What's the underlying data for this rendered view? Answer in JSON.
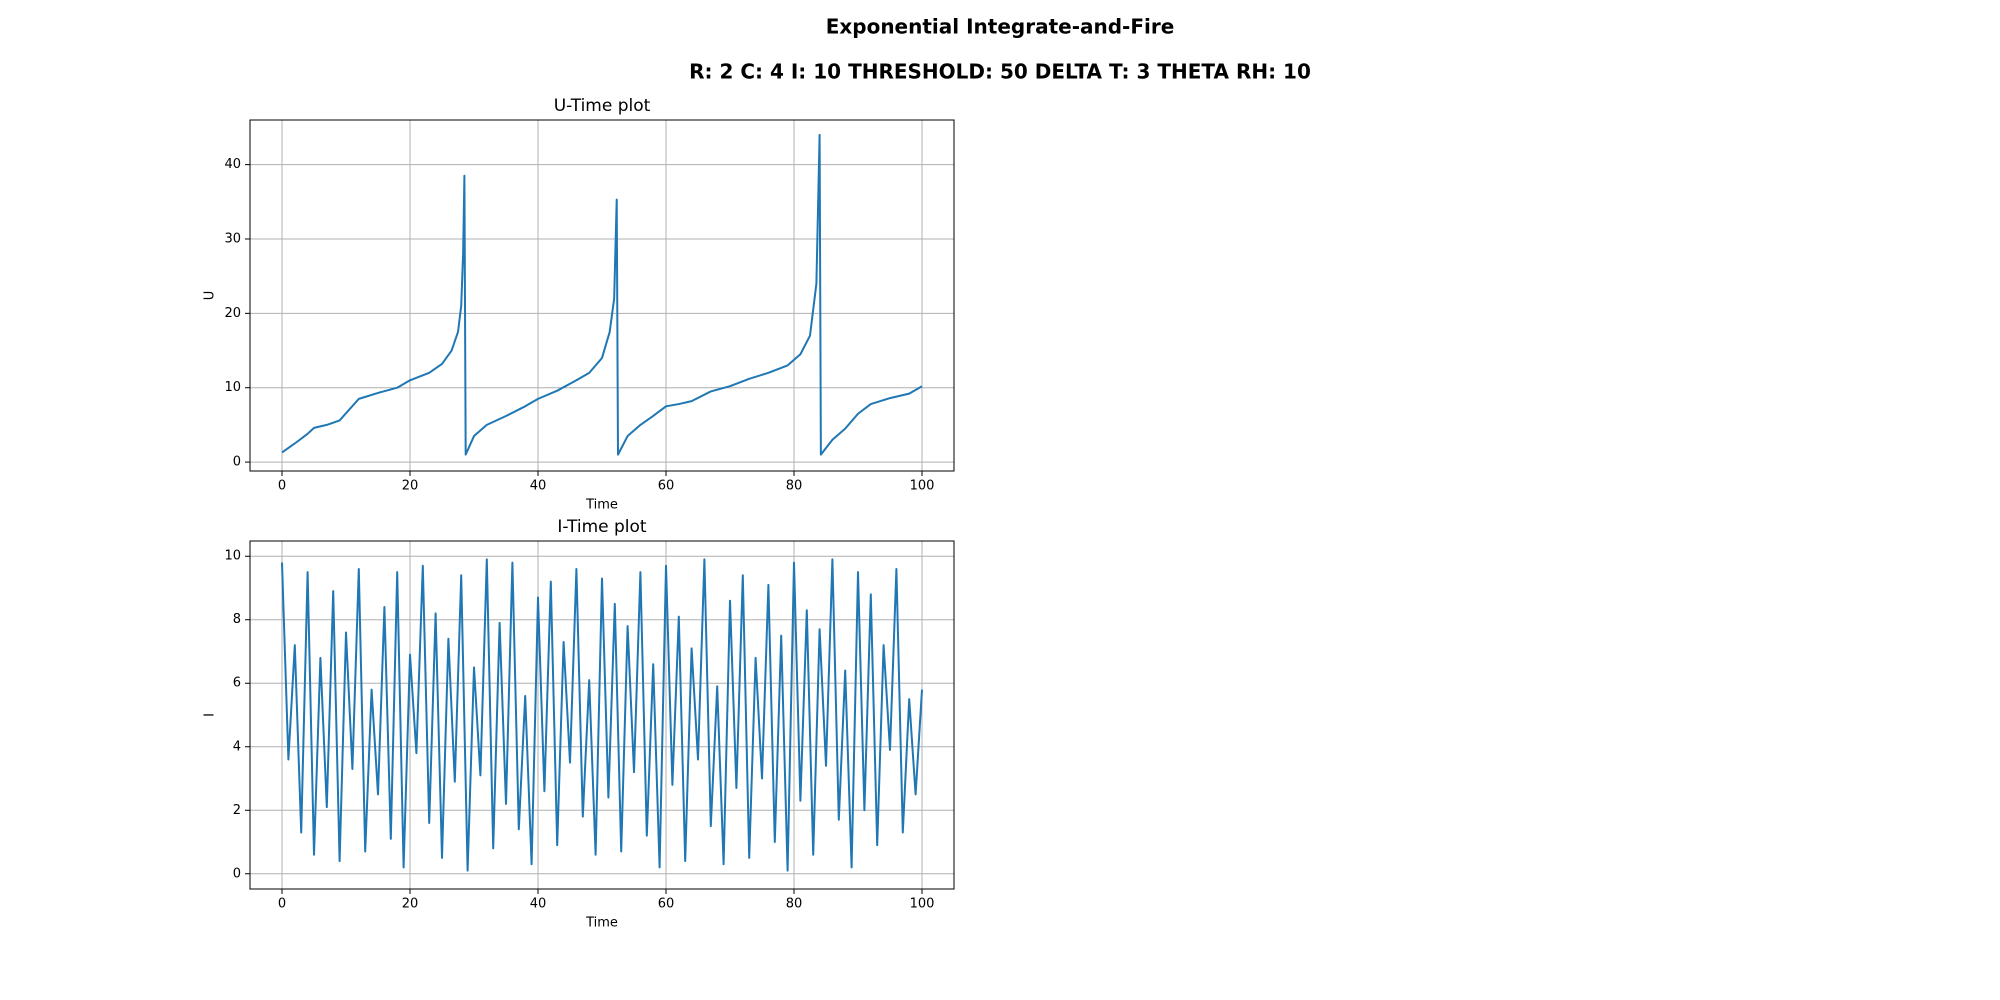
{
  "title": "Exponential Integrate-and-Fire",
  "subtitle": "R: 2    C: 4    I: 10    THRESHOLD: 50    DELTA T: 3    THETA RH: 10",
  "chart_data": [
    {
      "type": "line",
      "title": "U-Time plot",
      "x_label": "Time",
      "y_label": "U",
      "x": [
        0,
        2,
        4,
        5,
        7,
        9,
        12,
        15,
        18,
        20,
        23,
        25,
        26.5,
        27.5,
        28,
        28.3,
        28.5,
        28.7,
        30,
        32,
        35,
        38,
        40,
        43,
        46,
        48,
        50,
        51.2,
        51.9,
        52.3,
        52.5,
        54,
        56,
        58,
        60,
        62,
        64,
        67,
        70,
        73,
        76,
        79,
        81,
        82.5,
        83.5,
        84,
        84.2,
        86,
        88,
        90,
        92,
        95,
        98,
        100
      ],
      "series": [
        {
          "name": "U",
          "color": "#1f77b4",
          "values": [
            1.3,
            2.5,
            3.8,
            4.6,
            5,
            5.6,
            8.5,
            9.3,
            10,
            11,
            12,
            13.2,
            15,
            17.5,
            21,
            28,
            38.5,
            1,
            3.5,
            5,
            6.2,
            7.5,
            8.5,
            9.6,
            11,
            12,
            14,
            17.5,
            22,
            35.3,
            1,
            3.5,
            5,
            6.2,
            7.5,
            7.8,
            8.2,
            9.5,
            10.2,
            11.2,
            12,
            13,
            14.5,
            17,
            24,
            44,
            1,
            3,
            4.5,
            6.5,
            7.8,
            8.6,
            9.2,
            10.2
          ]
        }
      ],
      "xlim": [
        -5,
        105
      ],
      "xticks": [
        0,
        20,
        40,
        60,
        80,
        100
      ],
      "ylim": [
        -1.2,
        46
      ],
      "yticks": [
        0,
        10,
        20,
        30,
        40
      ],
      "grid": true
    },
    {
      "type": "line",
      "title": "I-Time plot",
      "x_label": "Time",
      "y_label": "I",
      "x": [
        0,
        1,
        2,
        3,
        4,
        5,
        6,
        7,
        8,
        9,
        10,
        11,
        12,
        13,
        14,
        15,
        16,
        17,
        18,
        19,
        20,
        21,
        22,
        23,
        24,
        25,
        26,
        27,
        28,
        29,
        30,
        31,
        32,
        33,
        34,
        35,
        36,
        37,
        38,
        39,
        40,
        41,
        42,
        43,
        44,
        45,
        46,
        47,
        48,
        49,
        50,
        51,
        52,
        53,
        54,
        55,
        56,
        57,
        58,
        59,
        60,
        61,
        62,
        63,
        64,
        65,
        66,
        67,
        68,
        69,
        70,
        71,
        72,
        73,
        74,
        75,
        76,
        77,
        78,
        79,
        80,
        81,
        82,
        83,
        84,
        85,
        86,
        87,
        88,
        89,
        90,
        91,
        92,
        93,
        94,
        95,
        96,
        97,
        98,
        99,
        100
      ],
      "series": [
        {
          "name": "I",
          "color": "#1f77b4",
          "values": [
            9.8,
            3.6,
            7.2,
            1.3,
            9.5,
            0.6,
            6.8,
            2.1,
            8.9,
            0.4,
            7.6,
            3.3,
            9.6,
            0.7,
            5.8,
            2.5,
            8.4,
            1.1,
            9.5,
            0.2,
            6.9,
            3.8,
            9.7,
            1.6,
            8.2,
            0.5,
            7.4,
            2.9,
            9.4,
            0.1,
            6.5,
            3.1,
            9.9,
            0.8,
            7.9,
            2.2,
            9.8,
            1.4,
            5.6,
            0.3,
            8.7,
            2.6,
            9.2,
            0.9,
            7.3,
            3.5,
            9.6,
            1.8,
            6.1,
            0.6,
            9.3,
            2.4,
            8.5,
            0.7,
            7.8,
            3.2,
            9.5,
            1.2,
            6.6,
            0.2,
            9.7,
            2.8,
            8.1,
            0.4,
            7.1,
            3.6,
            9.9,
            1.5,
            5.9,
            0.3,
            8.6,
            2.7,
            9.4,
            0.5,
            6.8,
            3.0,
            9.1,
            1.0,
            7.5,
            0.1,
            9.8,
            2.3,
            8.3,
            0.6,
            7.7,
            3.4,
            9.9,
            1.7,
            6.4,
            0.2,
            9.5,
            2.0,
            8.8,
            0.9,
            7.2,
            3.9,
            9.6,
            1.3,
            5.5,
            2.5,
            5.8
          ]
        }
      ],
      "xlim": [
        -5,
        105
      ],
      "xticks": [
        0,
        20,
        40,
        60,
        80,
        100
      ],
      "ylim": [
        -0.48,
        10.48
      ],
      "yticks": [
        0,
        2,
        4,
        6,
        8,
        10
      ],
      "grid": true
    }
  ]
}
